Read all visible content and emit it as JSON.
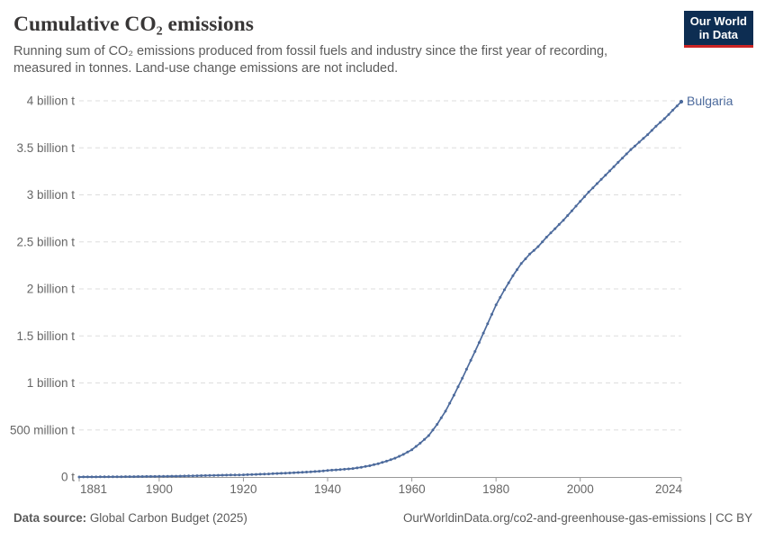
{
  "header": {
    "title": "Cumulative CO₂ emissions",
    "subtitle": "Running sum of CO₂ emissions produced from fossil fuels and industry since the first year of recording, measured in tonnes. Land-use change emissions are not included."
  },
  "logo": {
    "line1": "Our World",
    "line2": "in Data"
  },
  "entity_label": "Bulgaria",
  "footer": {
    "data_source_label": "Data source:",
    "data_source_value": "Global Carbon Budget (2025)",
    "attribution": "OurWorldinData.org/co2-and-greenhouse-gas-emissions | CC BY"
  },
  "colors": {
    "line": "#4c6a9c",
    "entity": "#4c6a9c",
    "grid": "#dddddd",
    "axis": "#999999",
    "tick_label": "#666666",
    "title": "#383636",
    "subtitle": "#5b5b5b",
    "footer": "#5b5b5b",
    "logo_bg": "#0d2d52",
    "logo_accent": "#cb2424"
  },
  "chart_data": {
    "type": "line",
    "title": "Cumulative CO₂ emissions",
    "unit": "tonnes",
    "grid": "dashed-horizontal",
    "legend_position": "end-of-line-label",
    "x_axis": {
      "range": [
        1881,
        2024
      ],
      "ticks": [
        1881,
        1900,
        1920,
        1940,
        1960,
        1980,
        2000,
        2024
      ]
    },
    "y_axis": {
      "unit": "tonnes",
      "range_billion_t": [
        0,
        4
      ],
      "ticks": [
        {
          "value": 0,
          "label": "0 t"
        },
        {
          "value": 0.5,
          "label": "500 million t"
        },
        {
          "value": 1,
          "label": "1 billion t"
        },
        {
          "value": 1.5,
          "label": "1.5 billion t"
        },
        {
          "value": 2,
          "label": "2 billion t"
        },
        {
          "value": 2.5,
          "label": "2.5 billion t"
        },
        {
          "value": 3,
          "label": "3 billion t"
        },
        {
          "value": 3.5,
          "label": "3.5 billion t"
        },
        {
          "value": 4,
          "label": "4 billion t"
        }
      ]
    },
    "series": [
      {
        "name": "Bulgaria",
        "marker_every_year": true,
        "anchor_years": [
          1881,
          1882,
          1884,
          1886,
          1888,
          1890,
          1892,
          1894,
          1896,
          1898,
          1900,
          1902,
          1904,
          1906,
          1908,
          1910,
          1912,
          1914,
          1916,
          1918,
          1920,
          1922,
          1924,
          1926,
          1928,
          1930,
          1932,
          1934,
          1936,
          1938,
          1940,
          1942,
          1944,
          1946,
          1948,
          1950,
          1952,
          1954,
          1956,
          1958,
          1960,
          1962,
          1964,
          1966,
          1968,
          1970,
          1972,
          1974,
          1976,
          1978,
          1980,
          1982,
          1984,
          1986,
          1988,
          1990,
          1992,
          1994,
          1996,
          1998,
          2000,
          2002,
          2004,
          2006,
          2008,
          2010,
          2012,
          2014,
          2016,
          2018,
          2020,
          2022,
          2024
        ],
        "anchor_values_billion_t": [
          0.0002,
          0.0005,
          0.001,
          0.0016,
          0.0022,
          0.0028,
          0.0035,
          0.0042,
          0.005,
          0.0058,
          0.0066,
          0.0077,
          0.009,
          0.0105,
          0.0122,
          0.014,
          0.016,
          0.018,
          0.02,
          0.0215,
          0.023,
          0.026,
          0.0295,
          0.033,
          0.037,
          0.041,
          0.045,
          0.05,
          0.055,
          0.061,
          0.07,
          0.076,
          0.082,
          0.09,
          0.103,
          0.12,
          0.142,
          0.168,
          0.2,
          0.24,
          0.29,
          0.36,
          0.44,
          0.56,
          0.7,
          0.87,
          1.05,
          1.24,
          1.43,
          1.63,
          1.83,
          1.99,
          2.14,
          2.27,
          2.37,
          2.45,
          2.55,
          2.64,
          2.73,
          2.83,
          2.93,
          3.03,
          3.12,
          3.21,
          3.3,
          3.39,
          3.48,
          3.56,
          3.64,
          3.73,
          3.81,
          3.9,
          3.99
        ]
      }
    ]
  }
}
